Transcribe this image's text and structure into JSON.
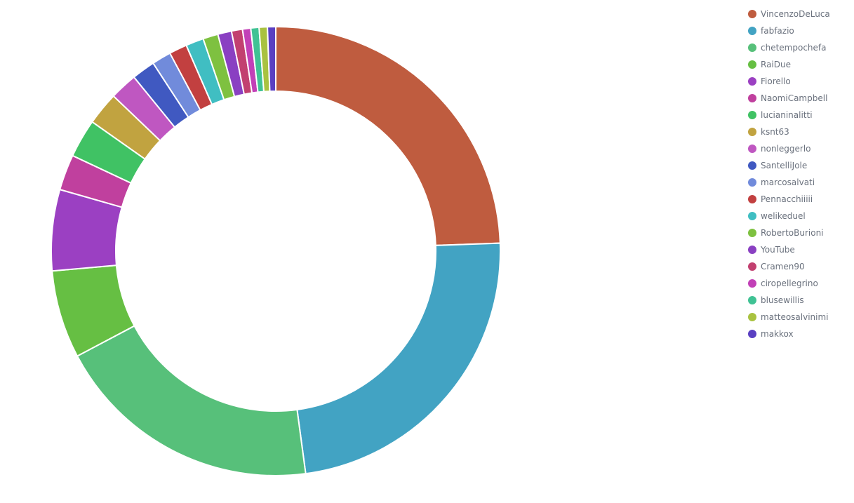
{
  "chart_data": {
    "type": "pie",
    "donut": true,
    "legend_position": "top-right",
    "title": "",
    "slices": [
      {
        "label": "VincenzoDeLuca",
        "value": 24.7,
        "color": "#bf5c3f"
      },
      {
        "label": "fabfazio",
        "value": 23.7,
        "color": "#42a3c3"
      },
      {
        "label": "chetempochefa",
        "value": 19.6,
        "color": "#57c07a"
      },
      {
        "label": "RaiDue",
        "value": 6.4,
        "color": "#66bf43"
      },
      {
        "label": "Fiorello",
        "value": 5.9,
        "color": "#9b40c2"
      },
      {
        "label": "NaomiCampbell",
        "value": 2.6,
        "color": "#c0409e"
      },
      {
        "label": "lucianinalitti",
        "value": 2.8,
        "color": "#40c264"
      },
      {
        "label": "ksnt63",
        "value": 2.4,
        "color": "#c1a340"
      },
      {
        "label": "nonleggerlo",
        "value": 2.0,
        "color": "#bf57c1"
      },
      {
        "label": "SantelliJole",
        "value": 1.7,
        "color": "#4059c1"
      },
      {
        "label": "marcosalvati",
        "value": 1.4,
        "color": "#718bdb"
      },
      {
        "label": "Pennacchiiiii",
        "value": 1.3,
        "color": "#c24040"
      },
      {
        "label": "welikeduel",
        "value": 1.3,
        "color": "#40bec2"
      },
      {
        "label": "RobertoBurioni",
        "value": 1.1,
        "color": "#7ec140"
      },
      {
        "label": "YouTube",
        "value": 1.0,
        "color": "#8a40c2"
      },
      {
        "label": "Cramen90",
        "value": 0.8,
        "color": "#c24070"
      },
      {
        "label": "ciropellegrino",
        "value": 0.6,
        "color": "#c240b7"
      },
      {
        "label": "blusewillis",
        "value": 0.6,
        "color": "#40c294"
      },
      {
        "label": "matteosalvinimi",
        "value": 0.6,
        "color": "#a9c240"
      },
      {
        "label": "makkox",
        "value": 0.6,
        "color": "#5a40c2"
      }
    ]
  }
}
